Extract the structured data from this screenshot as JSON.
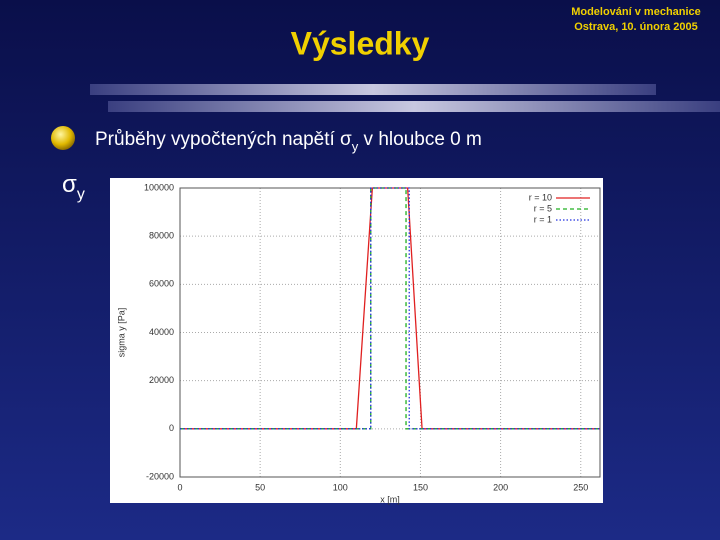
{
  "slide": {
    "title": "Výsledky",
    "header_line1": "Modelování v mechanice",
    "header_line2": "Ostrava, 10. února 2005",
    "bullet": [
      "Průběhy vypočtených napětí σ",
      "y",
      " v hloubce 0 m"
    ],
    "side_label": [
      "σ",
      "y"
    ]
  },
  "chart_data": {
    "type": "line",
    "xlabel": "x [m]",
    "ylabel": "sigma y [Pa]",
    "xlim": [
      0,
      262
    ],
    "xticks": [
      0,
      50,
      100,
      150,
      200,
      250
    ],
    "ylim": [
      -20000,
      100000
    ],
    "yticks": [
      -20000,
      0,
      20000,
      40000,
      60000,
      80000,
      100000
    ],
    "grid": true,
    "legend": "top-right",
    "series": [
      {
        "name": "r = 10",
        "color": "#e02020",
        "style": "solid",
        "x": [
          0,
          110,
          120,
          142,
          151,
          262
        ],
        "values": [
          0,
          0,
          100000,
          100000,
          0,
          0
        ]
      },
      {
        "name": "r = 5",
        "color": "#20b020",
        "style": "dashed",
        "x": [
          0,
          119,
          119,
          141,
          141,
          262
        ],
        "values": [
          0,
          0,
          100000,
          100000,
          0,
          0
        ]
      },
      {
        "name": "r = 1",
        "color": "#2030e0",
        "style": "dotted",
        "x": [
          0,
          119,
          119,
          143,
          143,
          262
        ],
        "values": [
          0,
          0,
          100000,
          100000,
          0,
          0
        ]
      }
    ]
  }
}
